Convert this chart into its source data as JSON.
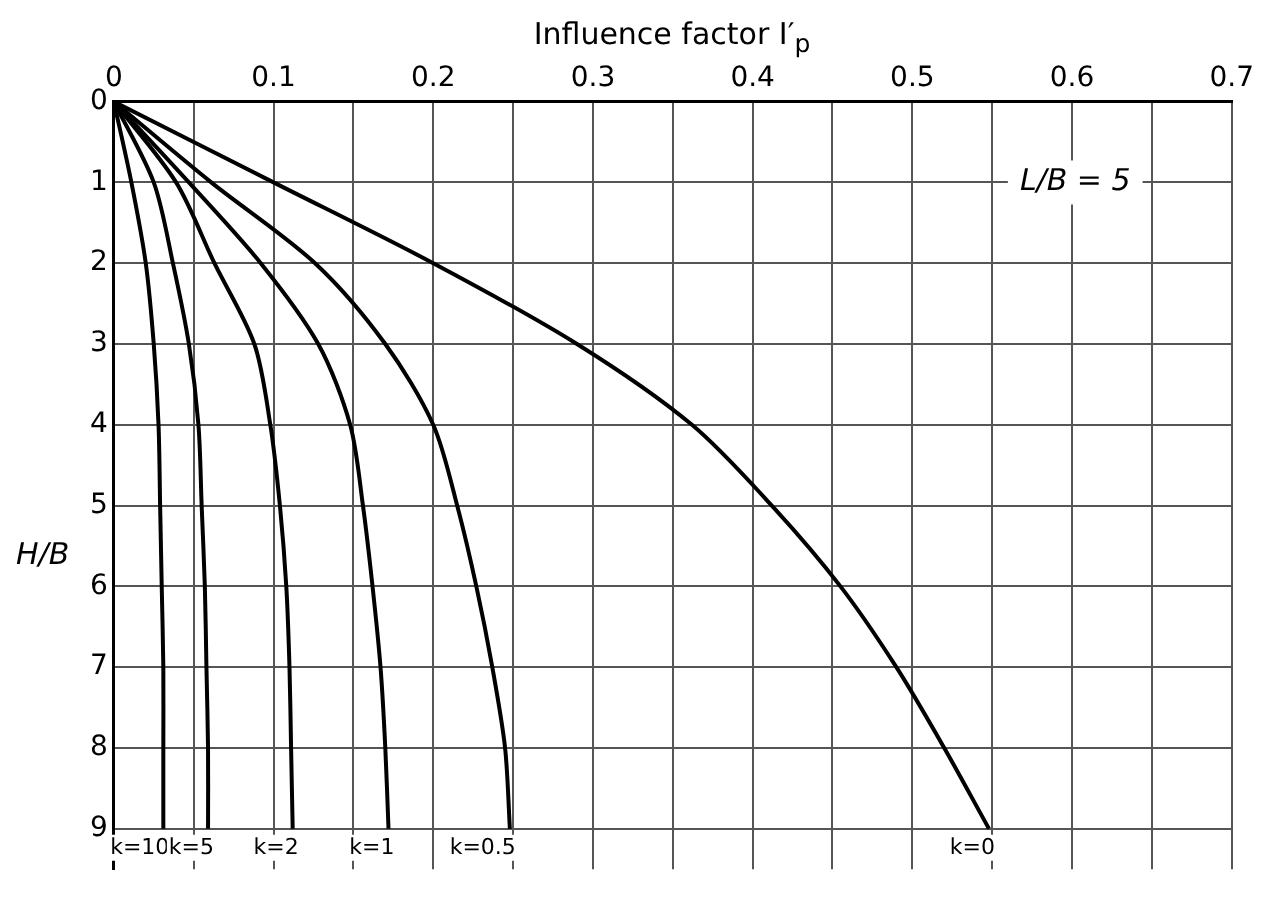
{
  "chart_data": {
    "type": "line",
    "xlabel": "Influence factor I′$_{p}$",
    "ylabel": "H/B",
    "annotations": [
      "L/B = 5"
    ],
    "xlim": [
      0,
      0.7
    ],
    "ylim": [
      9.5,
      0
    ],
    "xticks": [
      0,
      {
        "value": 0.05,
        "label": null
      },
      0.1,
      {
        "value": 0.15,
        "label": null
      },
      0.2,
      {
        "value": 0.25,
        "label": null
      },
      0.3,
      {
        "value": 0.35,
        "label": null
      },
      0.4,
      {
        "value": 0.45,
        "label": null
      },
      0.5,
      {
        "value": 0.55,
        "label": null
      },
      0.6,
      {
        "value": 0.65,
        "label": null
      },
      0.7
    ],
    "yticks": [
      0,
      1,
      2,
      3,
      4,
      5,
      6,
      7,
      8,
      9
    ],
    "grid": true,
    "legend": false,
    "marker": "none",
    "line_style": "solid",
    "series": [
      {
        "name": "k=10",
        "color": "#000000",
        "x": [
          0,
          0.011,
          0.02,
          0.025,
          0.028,
          0.029,
          0.03,
          0.031,
          0.031,
          0.031
        ],
        "values": [
          0,
          1,
          2,
          3,
          4,
          5,
          6,
          7,
          8,
          9
        ]
      },
      {
        "name": "k=5",
        "color": "#000000",
        "x": [
          0,
          0.025,
          0.037,
          0.047,
          0.053,
          0.055,
          0.057,
          0.058,
          0.059,
          0.059
        ],
        "values": [
          0,
          1,
          2,
          3,
          4,
          5,
          6,
          7,
          8,
          9
        ]
      },
      {
        "name": "k=2",
        "color": "#000000",
        "x": [
          0,
          0.039,
          0.063,
          0.088,
          0.098,
          0.104,
          0.108,
          0.11,
          0.111,
          0.112
        ],
        "values": [
          0,
          1,
          2,
          3,
          4,
          5,
          6,
          7,
          8,
          9
        ]
      },
      {
        "name": "k=1",
        "color": "#000000",
        "x": [
          0,
          0.047,
          0.092,
          0.128,
          0.148,
          0.156,
          0.162,
          0.167,
          0.17,
          0.172
        ],
        "values": [
          0,
          1,
          2,
          3,
          4,
          5,
          6,
          7,
          8,
          9
        ]
      },
      {
        "name": "k=0.5",
        "color": "#000000",
        "x": [
          0,
          0.061,
          0.126,
          0.17,
          0.2,
          0.215,
          0.227,
          0.237,
          0.245,
          0.248
        ],
        "values": [
          0,
          1,
          2,
          3,
          4,
          5,
          6,
          7,
          8,
          9
        ]
      },
      {
        "name": "k=0",
        "color": "#000000",
        "x": [
          0,
          0.1,
          0.2,
          0.29,
          0.362,
          0.412,
          0.455,
          0.49,
          0.52,
          0.548
        ],
        "values": [
          0,
          1,
          2,
          3,
          4,
          5,
          6,
          7,
          8,
          9
        ]
      }
    ]
  }
}
